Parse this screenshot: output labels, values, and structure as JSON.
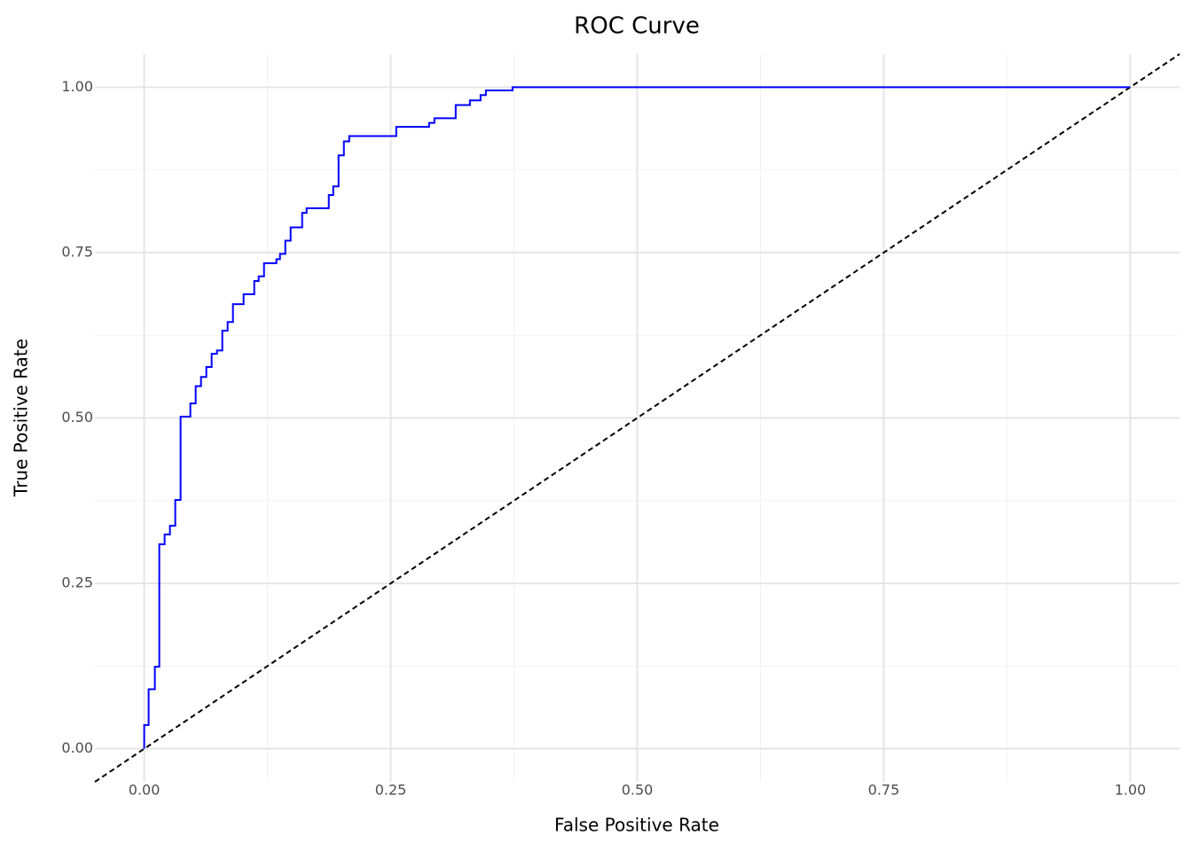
{
  "chart_data": {
    "type": "line",
    "title": "ROC Curve",
    "x_label": "False Positive Rate",
    "y_label": "True Positive Rate",
    "xlim": [
      -0.05,
      1.05
    ],
    "ylim": [
      -0.05,
      1.05
    ],
    "xticks": [
      {
        "value": 0,
        "label": "0.00"
      },
      {
        "value": 0.25,
        "label": "0.25"
      },
      {
        "value": 0.5,
        "label": "0.50"
      },
      {
        "value": 0.75,
        "label": "0.75"
      },
      {
        "value": 1,
        "label": "1.00"
      }
    ],
    "yticks": [
      {
        "value": 0,
        "label": "0.00"
      },
      {
        "value": 0.25,
        "label": "0.25"
      },
      {
        "value": 0.5,
        "label": "0.50"
      },
      {
        "value": 0.75,
        "label": "0.75"
      },
      {
        "value": 1,
        "label": "1.00"
      }
    ],
    "xminor": [
      0.125,
      0.375,
      0.625,
      0.875
    ],
    "yminor": [
      0.125,
      0.375,
      0.625,
      0.875
    ],
    "grid": true,
    "reference_line": {
      "slope": 1,
      "intercept": 0,
      "color": "#000000",
      "dashed": true
    },
    "series": [
      {
        "color": "#0000ff",
        "x": [
          0,
          0,
          0.0045,
          0.0045,
          0.0108,
          0.0108,
          0.0153,
          0.0153,
          0.0207,
          0.0207,
          0.0261,
          0.0261,
          0.0315,
          0.0315,
          0.0369,
          0.0369,
          0.0468,
          0.0468,
          0.0522,
          0.0522,
          0.0576,
          0.0576,
          0.063,
          0.063,
          0.0684,
          0.0684,
          0.0738,
          0.0738,
          0.0792,
          0.0792,
          0.0846,
          0.0846,
          0.09,
          0.09,
          0.1008,
          0.1008,
          0.1116,
          0.1116,
          0.1161,
          0.1161,
          0.1215,
          0.1215,
          0.1341,
          0.1341,
          0.1377,
          0.1377,
          0.1431,
          0.1431,
          0.1485,
          0.1485,
          0.1602,
          0.1602,
          0.1647,
          0.1647,
          0.1872,
          0.1872,
          0.1917,
          0.1917,
          0.1971,
          0.1971,
          0.2025,
          0.2025,
          0.2079,
          0.2079,
          0.2556,
          0.2556,
          0.2889,
          0.2889,
          0.2943,
          0.2943,
          0.3159,
          0.3159,
          0.3303,
          0.3303,
          0.3411,
          0.3411,
          0.3465,
          0.3465,
          0.3735,
          0.3735,
          1
        ],
        "y": [
          0,
          0.036,
          0.036,
          0.09,
          0.09,
          0.124,
          0.124,
          0.309,
          0.309,
          0.324,
          0.324,
          0.337,
          0.337,
          0.376,
          0.376,
          0.502,
          0.502,
          0.522,
          0.522,
          0.548,
          0.548,
          0.562,
          0.562,
          0.577,
          0.577,
          0.597,
          0.597,
          0.602,
          0.602,
          0.632,
          0.632,
          0.645,
          0.645,
          0.672,
          0.672,
          0.687,
          0.687,
          0.707,
          0.707,
          0.714,
          0.714,
          0.734,
          0.734,
          0.74,
          0.74,
          0.748,
          0.748,
          0.768,
          0.768,
          0.788,
          0.788,
          0.81,
          0.81,
          0.817,
          0.817,
          0.837,
          0.837,
          0.85,
          0.85,
          0.897,
          0.897,
          0.918,
          0.918,
          0.926,
          0.926,
          0.94,
          0.94,
          0.946,
          0.946,
          0.953,
          0.953,
          0.973,
          0.973,
          0.98,
          0.98,
          0.988,
          0.988,
          0.995,
          0.995,
          1,
          1
        ]
      }
    ]
  }
}
